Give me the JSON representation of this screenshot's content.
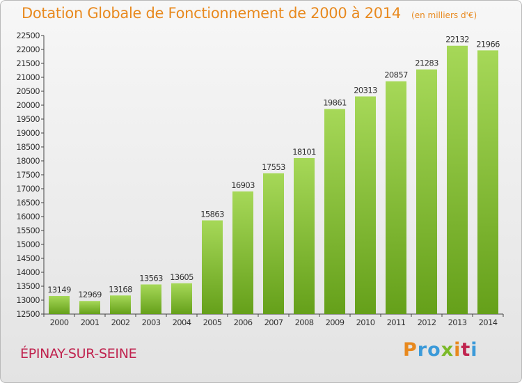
{
  "header": {
    "title": "Dotation Globale de Fonctionnement de 2000 à 2014",
    "subtitle": "(en milliers d'€)"
  },
  "footer": {
    "commune": "ÉPINAY-SUR-SEINE",
    "logo": "Proxiti"
  },
  "colors": {
    "title": "#e8891e",
    "commune": "#c0244f",
    "bar_light": "#9fd34f",
    "bar_dark": "#6aa21d"
  },
  "chart_data": {
    "type": "bar",
    "categories": [
      "2000",
      "2001",
      "2002",
      "2003",
      "2004",
      "2005",
      "2006",
      "2007",
      "2008",
      "2009",
      "2010",
      "2011",
      "2012",
      "2013",
      "2014"
    ],
    "values": [
      13149,
      12969,
      13168,
      13563,
      13605,
      15863,
      16903,
      17553,
      18101,
      19861,
      20313,
      20857,
      21283,
      22132,
      21966
    ],
    "ylim": [
      12500,
      22500
    ],
    "ytick_step": 500,
    "grid": false,
    "legend": "none",
    "data_labels": true
  }
}
